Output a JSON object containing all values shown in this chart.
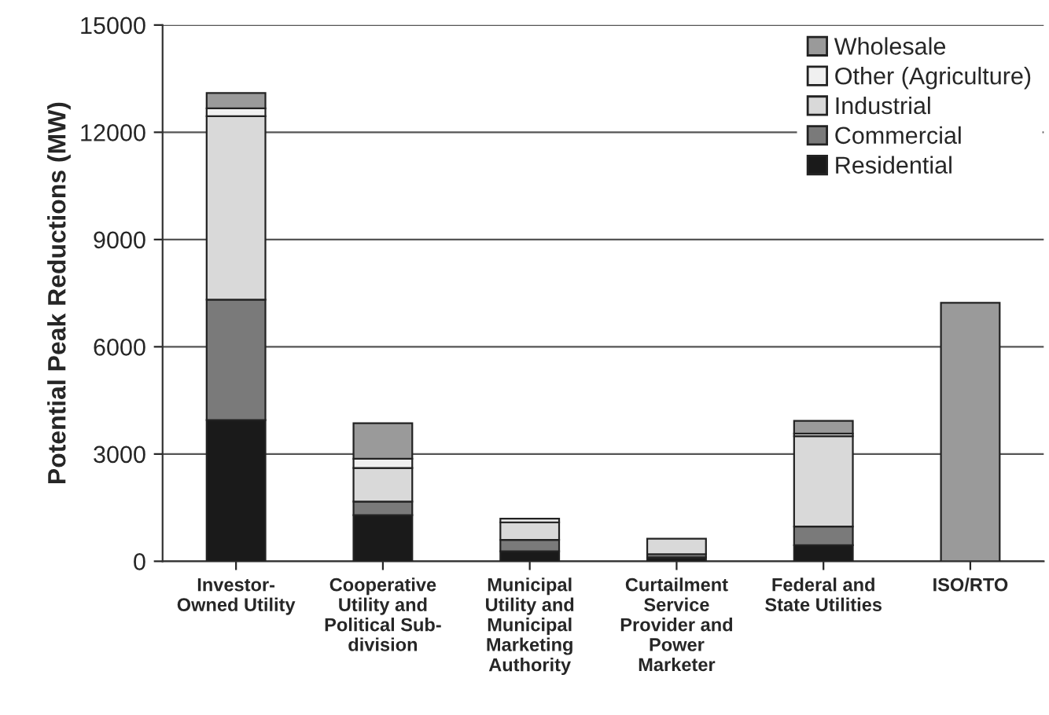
{
  "chart_data": {
    "type": "bar",
    "stacked": true,
    "ylabel": "Potential Peak Reductions (MW)",
    "categories": [
      "Investor-\nOwned Utility",
      "Cooperative\nUtility and\nPolitical Sub-\ndivision",
      "Municipal\nUtility and\nMunicipal\nMarketing\nAuthority",
      "Curtailment\nService\nProvider and\nPower\nMarketer",
      "Federal and\nState Utilities",
      "ISO/RTO"
    ],
    "series": [
      {
        "name": "Residential",
        "color": "#1a1a1a",
        "values": [
          3950,
          1290,
          280,
          110,
          450,
          0
        ]
      },
      {
        "name": "Commercial",
        "color": "#7a7a7a",
        "values": [
          3370,
          380,
          320,
          90,
          520,
          0
        ]
      },
      {
        "name": "Industrial",
        "color": "#d9d9d9",
        "values": [
          5130,
          940,
          490,
          430,
          2530,
          0
        ]
      },
      {
        "name": "Other (Agriculture)",
        "color": "#f0f0f0",
        "values": [
          220,
          260,
          100,
          0,
          70,
          0
        ]
      },
      {
        "name": "Wholesale",
        "color": "#9a9a9a",
        "values": [
          430,
          990,
          0,
          0,
          360,
          7230
        ]
      }
    ],
    "ylim": [
      0,
      15000
    ],
    "yticks": [
      0,
      3000,
      6000,
      9000,
      12000,
      15000
    ],
    "grid": "y",
    "legend": "top right"
  }
}
